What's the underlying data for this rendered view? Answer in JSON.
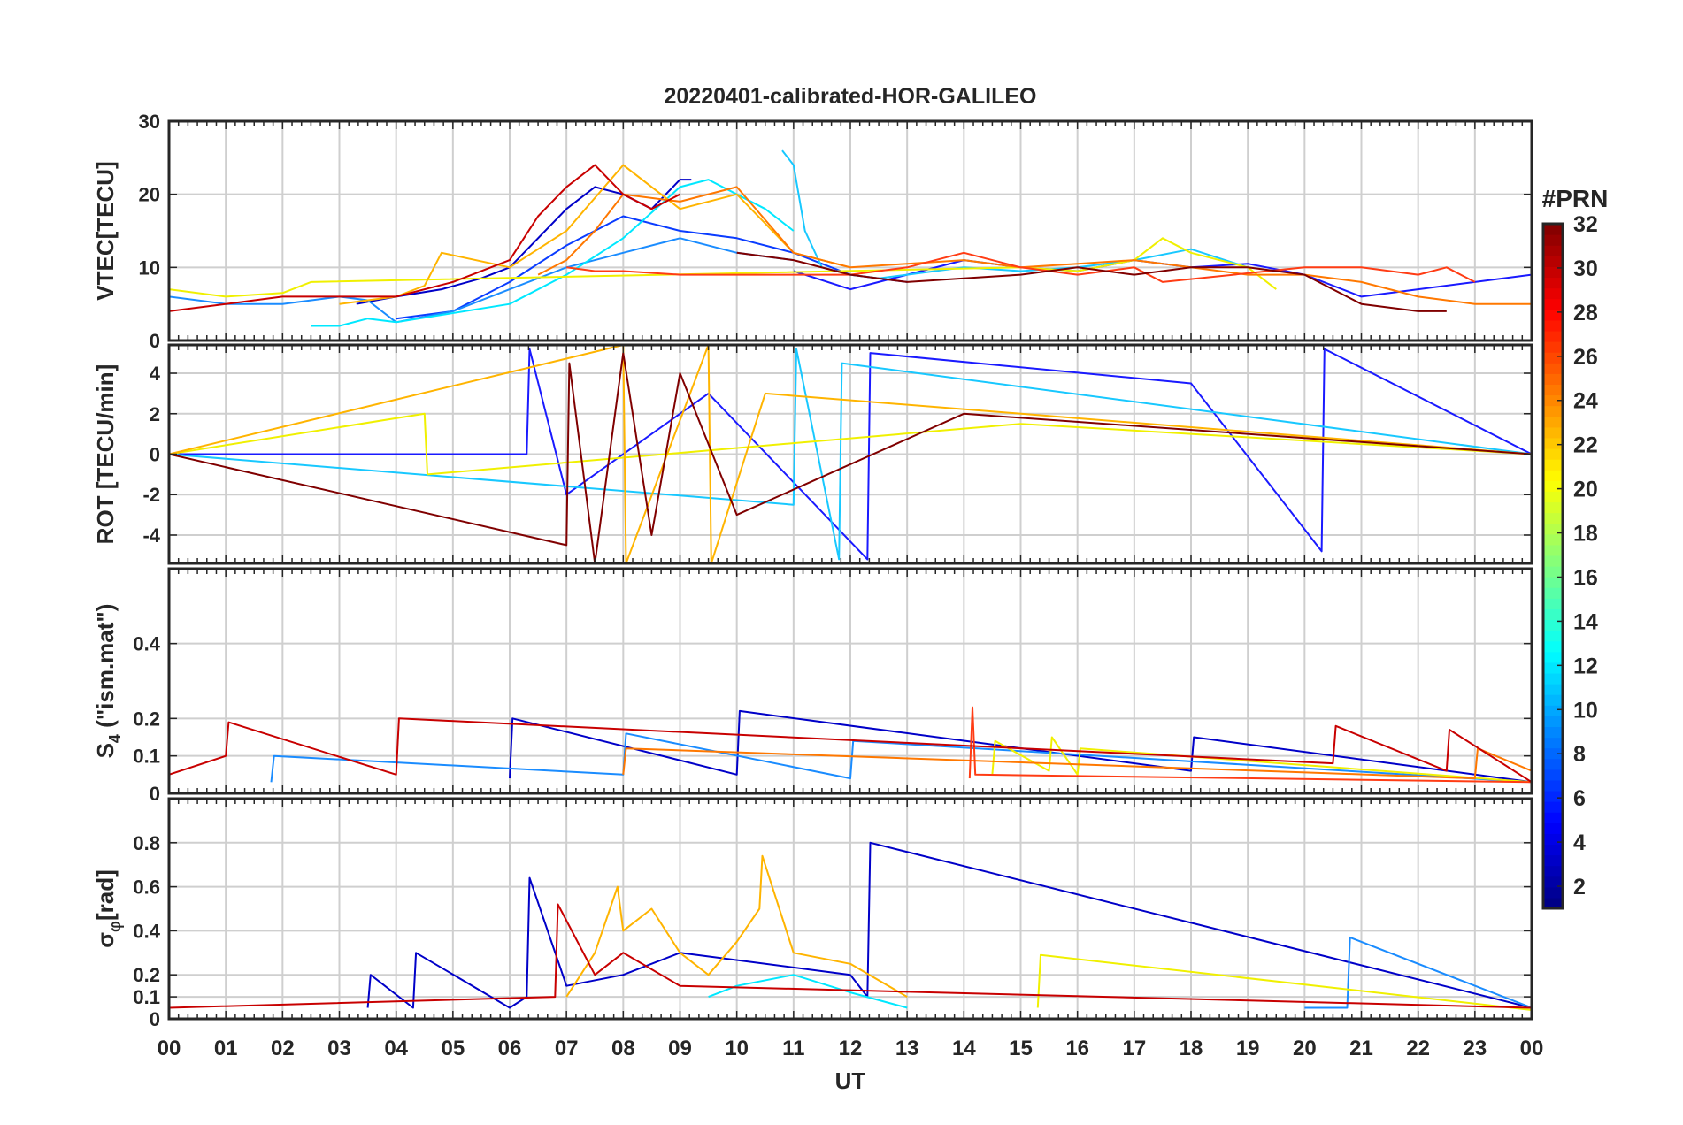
{
  "chart_data": {
    "type": "line",
    "title": "20220401-calibrated-HOR-GALILEO",
    "xlabel": "UT",
    "x_tick_labels": [
      "00",
      "01",
      "02",
      "03",
      "04",
      "05",
      "06",
      "07",
      "08",
      "09",
      "10",
      "11",
      "12",
      "13",
      "14",
      "15",
      "16",
      "17",
      "18",
      "19",
      "20",
      "21",
      "22",
      "23",
      "00"
    ],
    "xlim": [
      0,
      24
    ],
    "grid": true,
    "colorbar": {
      "title": "#PRN",
      "colormap": "jet",
      "clim": [
        1,
        32
      ],
      "tick_labels": [
        "2",
        "4",
        "6",
        "8",
        "10",
        "12",
        "14",
        "16",
        "18",
        "20",
        "22",
        "24",
        "26",
        "28",
        "30",
        "32"
      ]
    },
    "panels": [
      {
        "id": "vtec",
        "ylabel": "VTEC[TECU]",
        "ylim": [
          0,
          30
        ],
        "y_tick_labels": [
          "0",
          "10",
          "20",
          "30"
        ],
        "series": [
          {
            "prn": 2,
            "color": "#0000c8",
            "x": [
              3.3,
              4.0,
              4.8,
              5.5,
              6.0,
              6.5,
              7.0,
              7.5,
              8.0,
              8.5,
              9.0,
              9.2
            ],
            "y": [
              5,
              6,
              7,
              8.5,
              10,
              14,
              18,
              21,
              20,
              18,
              22,
              22
            ]
          },
          {
            "prn": 4,
            "color": "#1a1aff",
            "x": [
              11.0,
              12.0,
              13.0,
              14.0,
              15.0,
              16.0,
              17.0,
              18.0,
              19.0,
              20.0,
              21.0,
              22.0,
              23.0,
              24.0
            ],
            "y": [
              9.5,
              7,
              9,
              11,
              10,
              9.5,
              11,
              10,
              10.5,
              9,
              6,
              7,
              8,
              9
            ]
          },
          {
            "prn": 6,
            "color": "#0a3cff",
            "x": [
              4.0,
              5.0,
              6.0,
              7.0,
              8.0,
              9.0,
              10.0,
              11.0,
              12.0,
              13.0
            ],
            "y": [
              3,
              4,
              8,
              13,
              17,
              15,
              14,
              12,
              9,
              8
            ]
          },
          {
            "prn": 9,
            "color": "#1a8cff",
            "x": [
              0.0,
              1.0,
              2.0,
              3.0,
              3.5,
              4.0,
              5.0,
              6.0,
              7.0,
              8.0,
              9.0,
              10.0,
              11.0
            ],
            "y": [
              6,
              5,
              5,
              6,
              5.5,
              2.5,
              4,
              7,
              10,
              12,
              14,
              12,
              11
            ]
          },
          {
            "prn": 11,
            "color": "#18c8ff",
            "x": [
              10.8,
              11.0,
              11.2,
              11.5,
              12.0,
              12.5,
              13.0,
              14.0,
              15.0,
              16.0,
              17.0,
              18.0,
              19.0
            ],
            "y": [
              26,
              24,
              15,
              10,
              9,
              8.5,
              9,
              10,
              9.5,
              10,
              11,
              12.5,
              10
            ]
          },
          {
            "prn": 13,
            "color": "#00e8ff",
            "x": [
              2.5,
              3.0,
              3.5,
              4.0,
              6.0,
              7.0,
              8.0,
              9.0,
              9.5,
              10.0,
              10.5,
              11.0
            ],
            "y": [
              2,
              2,
              3,
              2.5,
              5,
              9,
              14,
              21,
              22,
              20,
              18,
              15
            ]
          },
          {
            "prn": 21,
            "color": "#f0f000",
            "x": [
              0.0,
              1.0,
              2.0,
              2.5,
              15.0,
              16.0,
              17.0,
              17.5,
              18.0,
              19.0,
              19.5
            ],
            "y": [
              7,
              6,
              6.5,
              8,
              10,
              9.5,
              11,
              14,
              12,
              10,
              7
            ]
          },
          {
            "prn": 23,
            "color": "#ffb400",
            "x": [
              3.0,
              3.5,
              4.0,
              4.5,
              4.8,
              6.0,
              7.0,
              8.0,
              9.0,
              10.0,
              10.5,
              11.0,
              12.0
            ],
            "y": [
              5,
              5.5,
              6,
              7.5,
              12,
              10,
              15,
              24,
              18,
              20,
              16,
              12,
              10
            ]
          },
          {
            "prn": 25,
            "color": "#ff7800",
            "x": [
              6.5,
              7.0,
              7.5,
              8.0,
              9.0,
              10.0,
              11.0,
              12.0,
              13.0,
              14.0,
              15.0,
              16.0,
              17.0,
              18.0,
              19.0,
              20.0,
              21.0,
              22.0,
              23.0,
              24.0
            ],
            "y": [
              9,
              11,
              15,
              20,
              19,
              21,
              12,
              10,
              10.5,
              11,
              10,
              10.5,
              11,
              10,
              9,
              9,
              8,
              6,
              5,
              5
            ]
          },
          {
            "prn": 27,
            "color": "#ff3c14",
            "x": [
              7.0,
              7.5,
              8.0,
              9.0,
              9.5,
              12.0,
              13.0,
              14.0,
              15.0,
              16.0,
              17.0,
              17.5,
              20.0,
              21.0,
              22.0,
              22.5,
              23.0
            ],
            "y": [
              10,
              9.5,
              9.5,
              9,
              9,
              9,
              10,
              12,
              10,
              9,
              10,
              8,
              10,
              10,
              9,
              10,
              8
            ]
          },
          {
            "prn": 31,
            "color": "#c80000",
            "x": [
              0.0,
              1.0,
              2.0,
              3.0,
              4.0,
              5.0,
              6.0,
              6.5,
              7.0,
              7.5,
              8.0,
              8.5,
              9.0
            ],
            "y": [
              4,
              5,
              6,
              6,
              6,
              8,
              11,
              17,
              21,
              24,
              20,
              18,
              20
            ]
          },
          {
            "prn": 32,
            "color": "#800000",
            "x": [
              10.0,
              11.0,
              12.0,
              13.0,
              14.0,
              15.0,
              16.0,
              17.0,
              18.0,
              19.0,
              20.0,
              21.0,
              22.0,
              22.5
            ],
            "y": [
              12,
              11,
              9,
              8,
              8.5,
              9,
              10,
              9,
              10,
              10,
              9,
              5,
              4,
              4
            ]
          }
        ]
      },
      {
        "id": "rot",
        "ylabel": "ROT [TECU/min]",
        "ylim": [
          -5.4,
          5.4
        ],
        "y_tick_labels": [
          "-4",
          "-2",
          "0",
          "2",
          "4"
        ],
        "series": [
          {
            "prn": 4,
            "color": "#1a1aff",
            "x": [
              0.0,
              6.3,
              6.35,
              7.0,
              9.5,
              12.3,
              12.35,
              18.0,
              20.3,
              20.35,
              24.0
            ],
            "y": [
              0,
              0,
              5.2,
              -2,
              3,
              -5.2,
              5,
              3.5,
              -4.8,
              5.2,
              0
            ]
          },
          {
            "prn": 11,
            "color": "#18c8ff",
            "x": [
              0.0,
              11.0,
              11.05,
              11.8,
              11.85,
              24.0
            ],
            "y": [
              0,
              -2.5,
              5.2,
              -5.2,
              4.5,
              0
            ]
          },
          {
            "prn": 21,
            "color": "#f0f000",
            "x": [
              0.0,
              4.5,
              4.55,
              15.0,
              24.0
            ],
            "y": [
              0,
              2,
              -1,
              1.5,
              0
            ]
          },
          {
            "prn": 23,
            "color": "#ffb400",
            "x": [
              0.0,
              8.0,
              8.05,
              9.5,
              9.55,
              10.5,
              24.0
            ],
            "y": [
              0,
              5.4,
              -5.4,
              5.4,
              -5.4,
              3,
              0
            ]
          },
          {
            "prn": 32,
            "color": "#800000",
            "x": [
              0.0,
              7.0,
              7.05,
              7.5,
              8.0,
              8.5,
              9.0,
              10.0,
              14.0,
              24.0
            ],
            "y": [
              0,
              -4.5,
              4.5,
              -5.4,
              5,
              -4,
              4,
              -3,
              2,
              0
            ]
          }
        ]
      },
      {
        "id": "s4",
        "ylabel": "S4 (\"ism.mat\")",
        "ylabel_main": "S",
        "ylabel_sub": "4",
        "ylabel_rest": " (\"ism.mat\")",
        "ylim": [
          0,
          0.6
        ],
        "y_tick_labels": [
          "0",
          "0.1",
          "0.2",
          "0.4"
        ],
        "series": [
          {
            "prn": 2,
            "color": "#0000c8",
            "x": [
              6.0,
              6.05,
              10.0,
              10.05,
              18.0,
              18.05,
              24.0
            ],
            "y": [
              0.04,
              0.2,
              0.05,
              0.22,
              0.06,
              0.15,
              0.03
            ]
          },
          {
            "prn": 9,
            "color": "#1a8cff",
            "x": [
              1.8,
              1.85,
              8.0,
              8.05,
              12.0,
              12.05,
              24.0
            ],
            "y": [
              0.03,
              0.1,
              0.05,
              0.16,
              0.04,
              0.14,
              0.03
            ]
          },
          {
            "prn": 21,
            "color": "#f0f000",
            "x": [
              14.5,
              14.55,
              15.5,
              15.55,
              16.0,
              16.05,
              24.0
            ],
            "y": [
              0.05,
              0.14,
              0.06,
              0.15,
              0.05,
              0.12,
              0.03
            ]
          },
          {
            "prn": 25,
            "color": "#ff7800",
            "x": [
              8.0,
              8.05,
              23.0,
              23.05,
              24.0
            ],
            "y": [
              0.05,
              0.12,
              0.04,
              0.12,
              0.06
            ]
          },
          {
            "prn": 27,
            "color": "#ff3c14",
            "x": [
              14.1,
              14.15,
              14.2,
              24.0
            ],
            "y": [
              0.04,
              0.23,
              0.05,
              0.03
            ]
          },
          {
            "prn": 31,
            "color": "#c80000",
            "x": [
              0.0,
              1.0,
              1.05,
              4.0,
              4.05,
              20.5,
              20.55,
              22.5,
              22.55,
              24.0
            ],
            "y": [
              0.05,
              0.1,
              0.19,
              0.05,
              0.2,
              0.08,
              0.18,
              0.06,
              0.17,
              0.03
            ]
          }
        ]
      },
      {
        "id": "sigma_phi",
        "ylabel": "σφ[rad]",
        "ylabel_main": "σ",
        "ylabel_sub": "φ",
        "ylabel_rest": "[rad]",
        "ylim": [
          0,
          1.0
        ],
        "y_tick_labels": [
          "0",
          "0.1",
          "0.2",
          "0.4",
          "0.6",
          "0.8"
        ],
        "series": [
          {
            "prn": 2,
            "color": "#0000c8",
            "x": [
              3.5,
              3.55,
              4.3,
              4.35,
              6.0,
              6.3,
              6.35,
              7.0,
              8.0,
              9.0,
              12.0,
              12.3,
              12.35,
              24.0
            ],
            "y": [
              0.05,
              0.2,
              0.05,
              0.3,
              0.05,
              0.1,
              0.64,
              0.15,
              0.2,
              0.3,
              0.2,
              0.1,
              0.8,
              0.05
            ]
          },
          {
            "prn": 10,
            "color": "#1a8cff",
            "x": [
              20.0,
              20.75,
              20.8,
              24.0
            ],
            "y": [
              0.05,
              0.05,
              0.37,
              0.05
            ]
          },
          {
            "prn": 13,
            "color": "#00e8ff",
            "x": [
              9.5,
              10.0,
              11.0,
              12.0,
              13.0
            ],
            "y": [
              0.1,
              0.15,
              0.2,
              0.12,
              0.05
            ]
          },
          {
            "prn": 21,
            "color": "#f0f000",
            "x": [
              15.3,
              15.35,
              24.0
            ],
            "y": [
              0.05,
              0.29,
              0.04
            ]
          },
          {
            "prn": 23,
            "color": "#ffb400",
            "x": [
              7.0,
              7.5,
              7.9,
              8.0,
              8.5,
              9.0,
              9.5,
              10.0,
              10.4,
              10.45,
              11.0,
              12.0,
              13.0
            ],
            "y": [
              0.1,
              0.3,
              0.6,
              0.4,
              0.5,
              0.3,
              0.2,
              0.35,
              0.5,
              0.74,
              0.3,
              0.25,
              0.1
            ]
          },
          {
            "prn": 31,
            "color": "#c80000",
            "x": [
              0.0,
              6.8,
              6.85,
              7.5,
              8.0,
              9.0,
              24.0
            ],
            "y": [
              0.05,
              0.1,
              0.52,
              0.2,
              0.3,
              0.15,
              0.05
            ]
          }
        ]
      }
    ]
  }
}
